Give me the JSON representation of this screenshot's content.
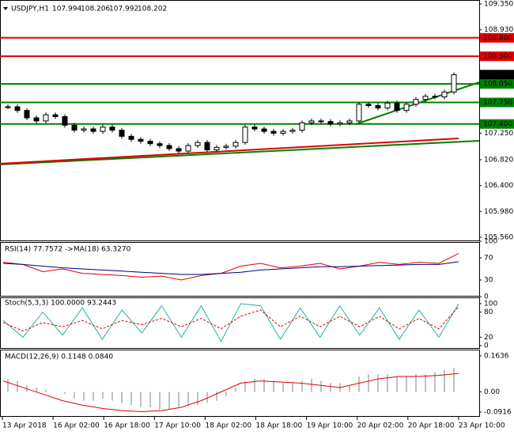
{
  "chart_data": [
    {
      "type": "candlestick",
      "title": "USDJPY,H1",
      "ohlc": [
        107.994,
        108.206,
        107.992,
        108.202
      ],
      "values": [
        107.68,
        107.62,
        107.5,
        107.45,
        107.55,
        107.52,
        107.38,
        107.3,
        107.32,
        107.28,
        107.35,
        107.3,
        107.2,
        107.15,
        107.12,
        107.08,
        107.05,
        107.0,
        106.96,
        107.05,
        107.1,
        106.98,
        107.02,
        107.04,
        107.1,
        107.35,
        107.32,
        107.28,
        107.25,
        107.28,
        107.3,
        107.42,
        107.45,
        107.44,
        107.4,
        107.42,
        107.45,
        107.72,
        107.7,
        107.66,
        107.74,
        107.62,
        107.72,
        107.8,
        107.85,
        107.84,
        107.92,
        108.2
      ],
      "color": "#000000",
      "ylim": [
        105.56,
        109.35
      ],
      "yticks": [
        {
          "value": 109.35,
          "label": "109.350"
        },
        {
          "value": 108.93,
          "label": "108.930"
        },
        {
          "value": 107.25,
          "label": "107.250"
        },
        {
          "value": 106.82,
          "label": "106.820"
        },
        {
          "value": 106.4,
          "label": "106.400"
        },
        {
          "value": 105.98,
          "label": "105.980"
        },
        {
          "value": 105.56,
          "label": "105.560"
        }
      ],
      "levels": [
        {
          "value": 108.8,
          "label": "108.800",
          "color": "#e00000"
        },
        {
          "value": 108.5,
          "label": "108.500",
          "color": "#e00000"
        },
        {
          "value": 108.05,
          "label": "108.050",
          "color": "#008000"
        },
        {
          "value": 107.75,
          "label": "107.750",
          "color": "#008000"
        },
        {
          "value": 107.4,
          "label": "107.400",
          "color": "#008000"
        }
      ],
      "last": {
        "value": 108.202,
        "label": "108.202"
      }
    },
    {
      "type": "line",
      "title": "RSI(14) 77.7572 ->MA(18) 63.3270",
      "ylim": [
        0,
        100
      ],
      "yticks": [
        100,
        70,
        30,
        0
      ],
      "series": [
        {
          "color": "#e00000",
          "values": [
            62,
            58,
            45,
            50,
            42,
            40,
            38,
            35,
            37,
            30,
            38,
            42,
            55,
            60,
            52,
            55,
            60,
            50,
            55,
            62,
            58,
            62,
            60,
            78
          ]
        },
        {
          "color": "#000080",
          "values": [
            60,
            58,
            55,
            52,
            50,
            48,
            46,
            44,
            42,
            40,
            40,
            42,
            44,
            48,
            50,
            52,
            54,
            54,
            55,
            56,
            57,
            58,
            58,
            63
          ]
        }
      ]
    },
    {
      "type": "line",
      "title": "Stoch(5,3,3) 100.0000 93.2443",
      "ylim": [
        0,
        100
      ],
      "yticks": [
        100,
        80,
        20,
        0
      ],
      "series": [
        {
          "color": "#20b2aa",
          "values": [
            60,
            20,
            80,
            25,
            90,
            15,
            85,
            30,
            95,
            20,
            95,
            10,
            100,
            95,
            15,
            90,
            20,
            95,
            25,
            90,
            15,
            85,
            20,
            100
          ]
        },
        {
          "color": "#e00000",
          "dashed": true,
          "values": [
            55,
            35,
            55,
            45,
            60,
            40,
            60,
            50,
            65,
            45,
            65,
            40,
            70,
            85,
            45,
            70,
            45,
            70,
            45,
            70,
            40,
            65,
            40,
            93
          ]
        }
      ]
    },
    {
      "type": "macd",
      "title": "MACD(12,26,9) 0.1148 0.0840",
      "ylim": [
        -0.0916,
        0.1636
      ],
      "yticks": [
        0.1636,
        {
          "value": 0,
          "label": "0.00"
        },
        -0.0916
      ],
      "series": [
        {
          "color": "#c0c0c0",
          "values": [
            0.06,
            0.05,
            0.03,
            0.02,
            0.01,
            0,
            -0.01,
            -0.03,
            -0.04,
            -0.04,
            -0.03,
            -0.04,
            -0.05,
            -0.06,
            -0.07,
            -0.07,
            -0.08,
            -0.08,
            -0.07,
            -0.06,
            -0.06,
            -0.05,
            -0.04,
            -0.02,
            0.02,
            0.05,
            0.06,
            0.06,
            0.05,
            0.04,
            0.04,
            0.05,
            0.06,
            0.05,
            0.04,
            0.04,
            0.03,
            0.07,
            0.08,
            0.08,
            0.08,
            0.07,
            0.07,
            0.08,
            0.08,
            0.09,
            0.1,
            0.11
          ]
        },
        {
          "color": "#e00000",
          "values": [
            0.05,
            0.02,
            -0.01,
            -0.04,
            -0.06,
            -0.075,
            -0.085,
            -0.09,
            -0.085,
            -0.07,
            -0.04,
            0,
            0.04,
            0.05,
            0.045,
            0.04,
            0.03,
            0.02,
            0.04,
            0.06,
            0.07,
            0.07,
            0.075,
            0.084
          ]
        }
      ],
      "x_labels": [
        "13 Apr 2018",
        "16 Apr 02:00",
        "16 Apr 18:00",
        "17 Apr 10:00",
        "18 Apr 02:00",
        "18 Apr 18:00",
        "19 Apr 10:00",
        "20 Apr 02:00",
        "20 Apr 18:00",
        "23 Apr 10:00"
      ]
    }
  ]
}
